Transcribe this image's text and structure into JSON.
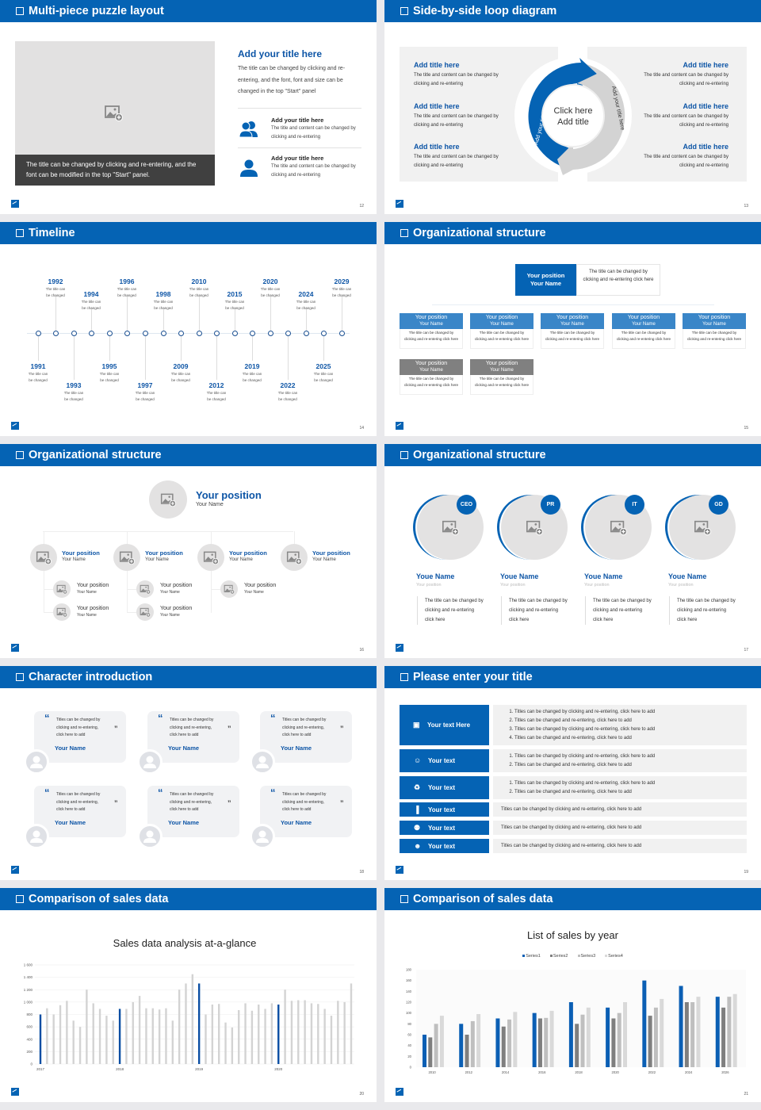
{
  "slides": [
    {
      "title": "Multi-piece puzzle layout",
      "page": "12"
    },
    {
      "title": "Side-by-side loop diagram",
      "page": "13"
    },
    {
      "title": "Timeline",
      "page": "14"
    },
    {
      "title": "Organizational structure",
      "page": "15"
    },
    {
      "title": "Organizational structure",
      "page": "16"
    },
    {
      "title": "Organizational structure",
      "page": "17"
    },
    {
      "title": "Character introduction",
      "page": "18"
    },
    {
      "title": "Please enter your title",
      "page": "19"
    },
    {
      "title": "Comparison of sales data",
      "page": "20"
    },
    {
      "title": "Comparison of sales data",
      "page": "21"
    }
  ],
  "puzzle": {
    "caption": "The title can be changed by clicking and re-entering, and the font can be modified in the top \"Start\" panel.",
    "heading": "Add your title here",
    "body": "The title can be changed by clicking and re-entering, and the font, font and size can be changed in the top \"Start\" panel",
    "items": [
      {
        "icon": "users-icon",
        "title": "Add your title here",
        "body": "The title and content can be changed by clicking and re-entering"
      },
      {
        "icon": "user-icon",
        "title": "Add your title here",
        "body": "The title and content can be changed by clicking and re-entering"
      }
    ]
  },
  "loop": {
    "left": [
      {
        "title": "Add title here",
        "body": "The title and content can be changed by clicking and re-entering"
      },
      {
        "title": "Add title here",
        "body": "The title and content can be changed by clicking and re-entering"
      },
      {
        "title": "Add title here",
        "body": "The title and content can be changed by clicking and re-entering"
      }
    ],
    "right": [
      {
        "title": "Add title here",
        "body": "The title and content can be changed by clicking and re-entering"
      },
      {
        "title": "Add title here",
        "body": "The title and content can be changed by clicking and re-entering"
      },
      {
        "title": "Add title here",
        "body": "The title and content can be changed by clicking and re-entering"
      }
    ],
    "center_line1": "Click here",
    "center_line2": "Add title",
    "arc_left": "Add your title here",
    "arc_right": "Add your title here"
  },
  "timeline": {
    "events": [
      {
        "year": "1991",
        "text": "The title can be changed"
      },
      {
        "year": "1992",
        "text": "The title can be changed"
      },
      {
        "year": "1993",
        "text": "The title can be changed"
      },
      {
        "year": "1994",
        "text": "The title can be changed"
      },
      {
        "year": "1995",
        "text": "The title can be changed"
      },
      {
        "year": "1996",
        "text": "The title can be changed"
      },
      {
        "year": "1997",
        "text": "The title can be changed"
      },
      {
        "year": "1998",
        "text": "The title can be changed"
      },
      {
        "year": "2009",
        "text": "The title can be changed"
      },
      {
        "year": "2010",
        "text": "The title can be changed"
      },
      {
        "year": "2012",
        "text": "The title can be changed"
      },
      {
        "year": "2015",
        "text": "The title can be changed"
      },
      {
        "year": "2019",
        "text": "The title can be changed"
      },
      {
        "year": "2020",
        "text": "The title can be changed"
      },
      {
        "year": "2022",
        "text": "The title can be changed"
      },
      {
        "year": "2024",
        "text": "The title can be changed"
      },
      {
        "year": "2025",
        "text": "The title can be changed"
      },
      {
        "year": "2029",
        "text": "The title can be changed"
      }
    ]
  },
  "org1": {
    "top": {
      "position": "Your position",
      "name": "Your Name",
      "desc": "The title can be changed by clicking and re-entering click here"
    },
    "row1": [
      {
        "position": "Your position",
        "name": "Your Name",
        "desc": "The title can be changed by clicking and re-entering click here"
      },
      {
        "position": "Your position",
        "name": "Your Name",
        "desc": "The title can be changed by clicking and re-entering click here"
      },
      {
        "position": "Your position",
        "name": "Your Name",
        "desc": "The title can be changed by clicking and re-entering click here"
      },
      {
        "position": "Your position",
        "name": "Your Name",
        "desc": "The title can be changed by clicking and re-entering click here"
      },
      {
        "position": "Your position",
        "name": "Your Name",
        "desc": "The title can be changed by clicking and re-entering click here"
      }
    ],
    "row2": [
      {
        "position": "Your position",
        "name": "Your Name",
        "desc": "The title can be changed by clicking and re-entering click here"
      },
      {
        "position": "Your position",
        "name": "Your Name",
        "desc": "The title can be changed by clicking and re-entering click here"
      }
    ],
    "colors": {
      "header": "#3a86c8",
      "top": "#0563b4",
      "gray": "#808080"
    }
  },
  "org2": {
    "top": {
      "position": "Your position",
      "name": "Your Name"
    },
    "branches": [
      {
        "position": "Your position",
        "name": "Your Name",
        "children": [
          {
            "position": "Your position",
            "name": "Your Name"
          },
          {
            "position": "Your position",
            "name": "Your Name"
          }
        ]
      },
      {
        "position": "Your position",
        "name": "Your Name",
        "children": [
          {
            "position": "Your position",
            "name": "Your Name"
          },
          {
            "position": "Your position",
            "name": "Your Name"
          }
        ]
      },
      {
        "position": "Your position",
        "name": "Your Name",
        "children": [
          {
            "position": "Your position",
            "name": "Your Name"
          }
        ]
      },
      {
        "position": "Your position",
        "name": "Your Name",
        "children": []
      }
    ]
  },
  "team": [
    {
      "badge": "CEO",
      "name": "Youe Name",
      "position": "Your position",
      "desc": "The title can be changed by clicking and re-entering click here"
    },
    {
      "badge": "PR",
      "name": "Youe Name",
      "position": "Your position",
      "desc": "The title can be changed by clicking and re-entering click here"
    },
    {
      "badge": "IT",
      "name": "Youe Name",
      "position": "Your position",
      "desc": "The title can be changed by clicking and re-entering click here"
    },
    {
      "badge": "GD",
      "name": "Youe Name",
      "position": "Your position",
      "desc": "The title can be changed by clicking and re-entering click here"
    }
  ],
  "characters": [
    {
      "text": "Titles can be changed by clicking and re-entering, click here to add",
      "name": "Your Name"
    },
    {
      "text": "Titles can be changed by clicking and re-entering, click here to add",
      "name": "Your Name"
    },
    {
      "text": "Titles can be changed by clicking and re-entering, click here to add",
      "name": "Your Name"
    },
    {
      "text": "Titles can be changed by clicking and re-entering, click here to add",
      "name": "Your Name"
    },
    {
      "text": "Titles can be changed by clicking and re-entering, click here to add",
      "name": "Your Name"
    },
    {
      "text": "Titles can be changed by clicking and re-entering, click here to add",
      "name": "Your Name"
    }
  ],
  "list_rows": [
    {
      "icon": "presentation-icon",
      "label": "Your text Here",
      "items": [
        "Titles can be changed by clicking and re-entering, click here to add",
        "Titles can be changed and re-entering, click here to add",
        "Titles can be changed by clicking and re-entering, click here to add",
        "Titles can be changed and re-entering, click here to add"
      ]
    },
    {
      "icon": "user-card-icon",
      "label": "Your text",
      "items": [
        "Titles can be changed by clicking and re-entering, click here to add",
        "Titles can be changed and re-entering, click here to add"
      ]
    },
    {
      "icon": "recycle-icon",
      "label": "Your text",
      "items": [
        "Titles can be changed by clicking and re-entering, click here to add",
        "Titles can be changed and re-entering, click here to add"
      ]
    },
    {
      "icon": "bar-chart-icon",
      "label": "Your text",
      "text": "Titles can be changed by clicking and re-entering, click here to add"
    },
    {
      "icon": "group-icon",
      "label": "Your text",
      "text": "Titles can be changed by clicking and re-entering, click here to add"
    },
    {
      "icon": "hand-person-icon",
      "label": "Your text",
      "text": "Titles can be changed by clicking and re-entering, click here to add"
    }
  ],
  "chart_data": [
    {
      "type": "bar",
      "title": "Sales data analysis at-a-glance",
      "ylim": [
        0,
        1600
      ],
      "yticks": [
        "0",
        "200",
        "400",
        "600",
        "800",
        "1 000",
        "1 200",
        "1 400",
        "1 600"
      ],
      "xtick_labels": [
        "2017",
        "2018",
        "2019",
        "2020"
      ],
      "values": [
        800,
        900,
        800,
        950,
        1020,
        700,
        600,
        1200,
        980,
        890,
        780,
        700,
        890,
        890,
        1000,
        1100,
        900,
        900,
        880,
        900,
        700,
        1200,
        1300,
        1450,
        1300,
        800,
        960,
        970,
        670,
        590,
        870,
        980,
        860,
        960,
        890,
        980,
        960,
        1200,
        1020,
        1030,
        1030,
        980,
        970,
        890,
        780,
        1020,
        1000,
        1300
      ],
      "highlight_indices": [
        0,
        12,
        24,
        36
      ],
      "colors": {
        "highlight": "#0a4ea3",
        "normal": "#d3d3d3"
      },
      "grid": true
    },
    {
      "type": "bar",
      "title": "List of sales by year",
      "ylim": [
        0,
        180
      ],
      "yticks": [
        "0",
        "20",
        "40",
        "60",
        "80",
        "100",
        "120",
        "140",
        "160",
        "180"
      ],
      "categories": [
        "2010",
        "2012",
        "2014",
        "2016",
        "2018",
        "2020",
        "2022",
        "2024",
        "2026"
      ],
      "legend": "top",
      "series": [
        {
          "name": "Series1",
          "color": "#0b5fb4",
          "values": [
            60,
            80,
            90,
            100,
            120,
            110,
            160,
            150,
            130
          ]
        },
        {
          "name": "Series2",
          "color": "#7f7f7f",
          "values": [
            55,
            60,
            75,
            90,
            80,
            90,
            95,
            120,
            110
          ]
        },
        {
          "name": "Series3",
          "color": "#bfbfbf",
          "values": [
            80,
            85,
            88,
            91,
            97,
            100,
            110,
            120,
            130
          ]
        },
        {
          "name": "Series4",
          "color": "#d9d9d9",
          "values": [
            95,
            98,
            102,
            104,
            110,
            120,
            126,
            130,
            135
          ]
        }
      ]
    }
  ]
}
